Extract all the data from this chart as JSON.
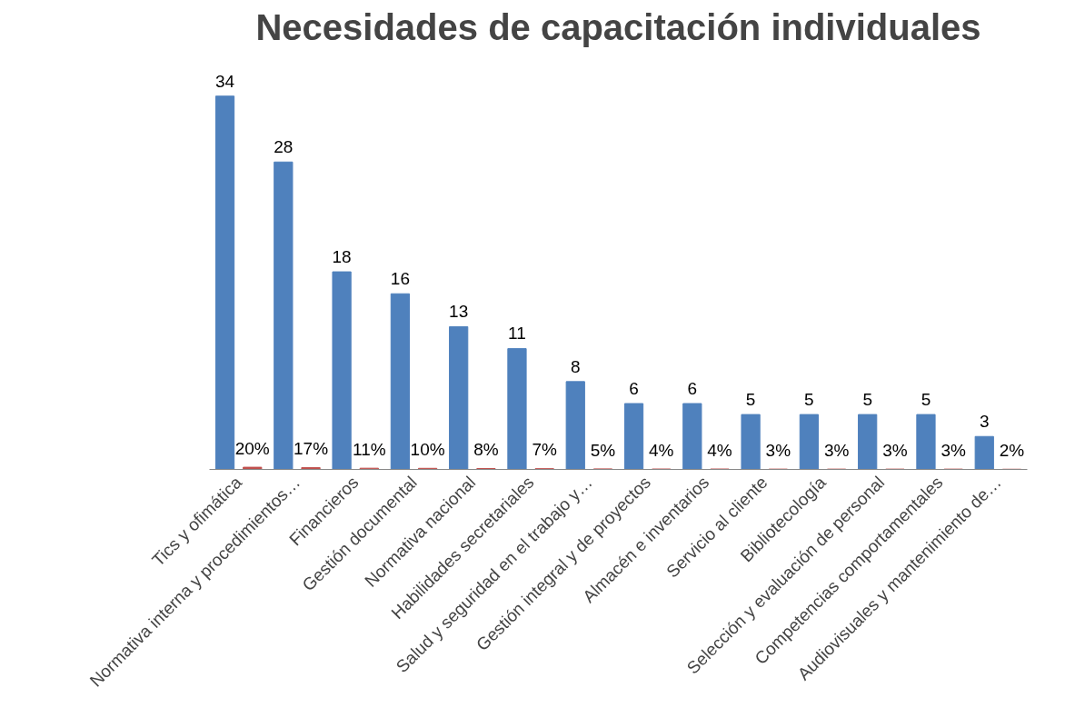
{
  "chart_data": {
    "type": "bar",
    "title": "Necesidades de capacitación individuales",
    "categories": [
      "Tics y ofimática",
      "Normativa interna y procedimientos…",
      "Financieros",
      "Gestión documental",
      "Normativa nacional",
      "Habilidades secretariales",
      "Salud y seguridad en el trabajo y…",
      "Gestión integral y de proyectos",
      "Almacén e inventarios",
      "Servicio al cliente",
      "Bibliotecología",
      "Selección y evaluación de personal",
      "Competencias comportamentales",
      "Audiovisuales y mantenimiento de…"
    ],
    "series": [
      {
        "color": "#4f81bd",
        "values": [
          34,
          28,
          18,
          16,
          13,
          11,
          8,
          6,
          6,
          5,
          5,
          5,
          5,
          3
        ],
        "value_labels": [
          "34",
          "28",
          "18",
          "16",
          "13",
          "11",
          "8",
          "6",
          "6",
          "5",
          "5",
          "5",
          "5",
          "3"
        ]
      },
      {
        "color": "#c0504d",
        "values": [
          0.2,
          0.17,
          0.11,
          0.1,
          0.08,
          0.07,
          0.05,
          0.04,
          0.04,
          0.03,
          0.03,
          0.03,
          0.03,
          0.02
        ],
        "value_labels": [
          "20%",
          "17%",
          "11%",
          "10%",
          "8%",
          "7%",
          "5%",
          "4%",
          "4%",
          "3%",
          "3%",
          "3%",
          "3%",
          "2%"
        ]
      }
    ]
  }
}
